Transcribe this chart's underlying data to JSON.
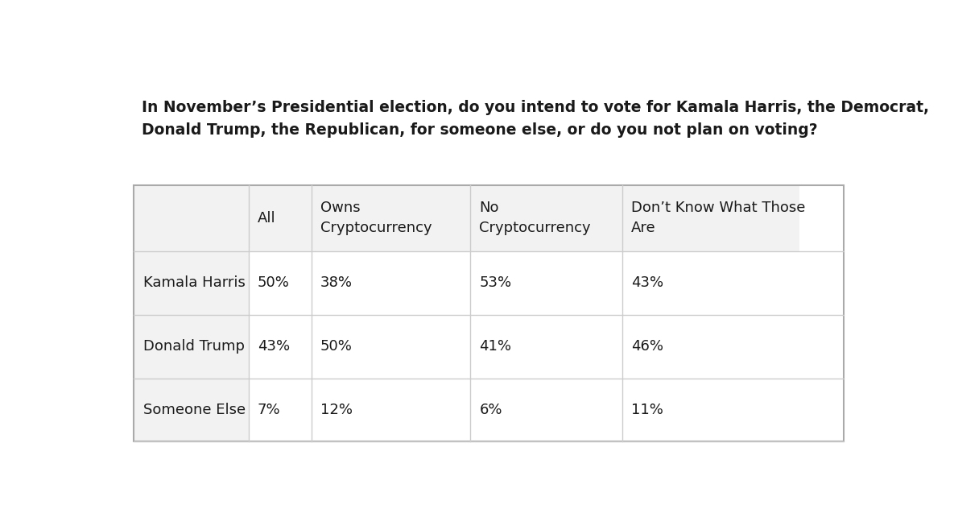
{
  "title": "In November’s Presidential election, do you intend to vote for Kamala Harris, the Democrat,\nDonald Trump, the Republican, for someone else, or do you not plan on voting?",
  "title_fontsize": 13.5,
  "title_fontweight": "bold",
  "background_color": "#ffffff",
  "cell_bg_color": "#ffffff",
  "header_bg_color": "#f2f2f2",
  "row_label_bg_color": "#f2f2f2",
  "border_color": "#cccccc",
  "text_color": "#1a1a1a",
  "col_headers": [
    "All",
    "Owns\nCryptocurrency",
    "No\nCryptocurrency",
    "Don’t Know What Those\nAre"
  ],
  "row_labels": [
    "Kamala Harris",
    "Donald Trump",
    "Someone Else"
  ],
  "data": [
    [
      "50%",
      "38%",
      "53%",
      "43%"
    ],
    [
      "43%",
      "50%",
      "41%",
      "46%"
    ],
    [
      "7%",
      "12%",
      "6%",
      "11%"
    ]
  ],
  "data_fontsize": 13,
  "header_fontsize": 13,
  "row_label_fontsize": 13
}
